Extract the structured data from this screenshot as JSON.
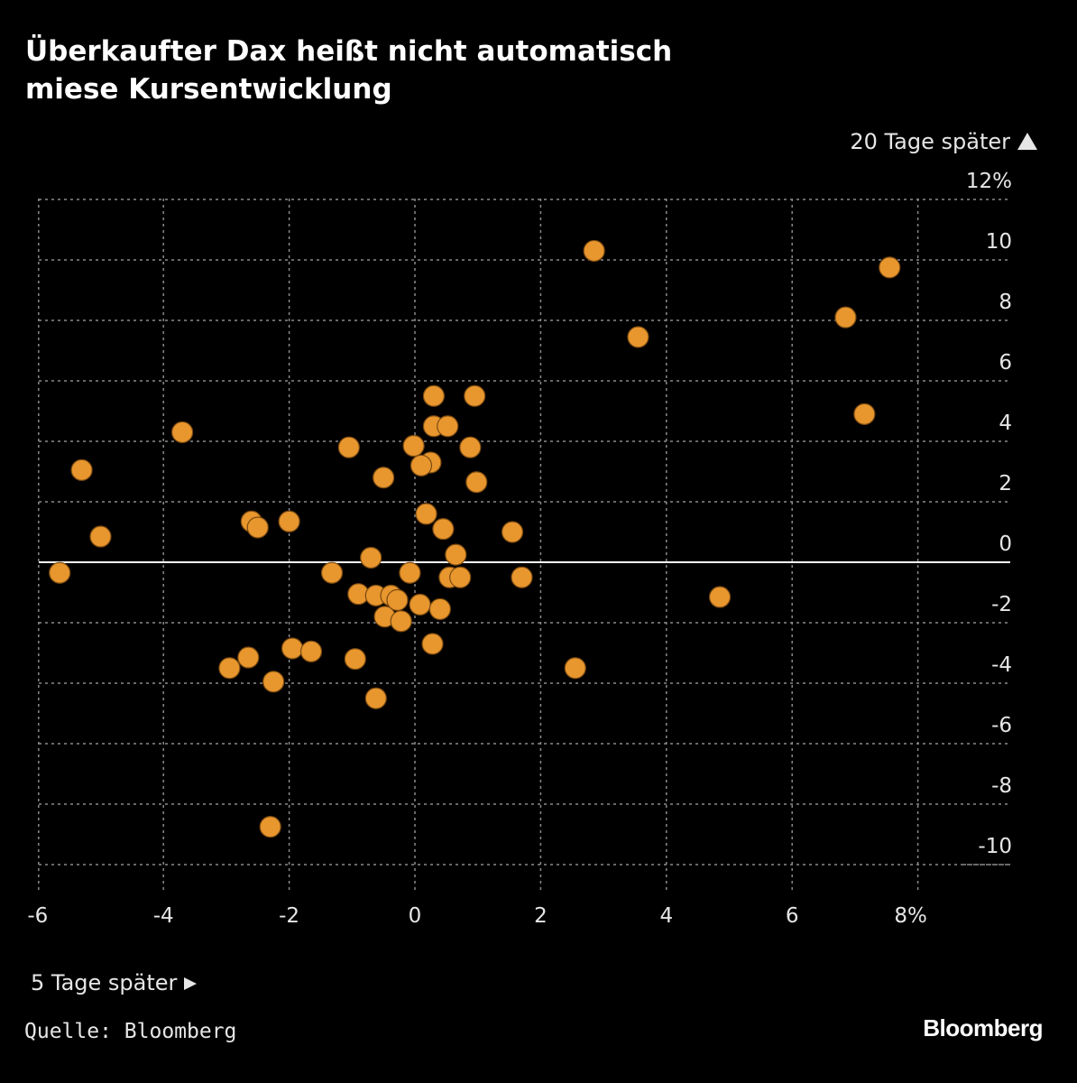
{
  "title_lines": [
    "Überkaufter Dax heißt nicht automatisch",
    "miese Kursentwicklung"
  ],
  "source": "Quelle: Bloomberg",
  "brand": "Bloomberg",
  "colors": {
    "point": "#E8962E",
    "point_stroke": "#7a4a10",
    "grid": "#8a8a8a",
    "zero_line": "#ffffff",
    "background": "#000000"
  },
  "chart_data": {
    "type": "scatter",
    "xlabel": "5 Tage später",
    "ylabel": "20 Tage später",
    "xlim": [
      -6,
      9
    ],
    "ylim": [
      -11,
      12
    ],
    "x_ticks": [
      -6,
      -4,
      -2,
      0,
      2,
      4,
      6,
      8
    ],
    "x_tick_labels": [
      "-6",
      "-4",
      "-2",
      "0",
      "2",
      "4",
      "6",
      "8%"
    ],
    "y_ticks": [
      12,
      10,
      8,
      6,
      4,
      2,
      0,
      -2,
      -4,
      -6,
      -8,
      -10
    ],
    "y_tick_labels": [
      "12%",
      "10",
      "8",
      "6",
      "4",
      "2",
      "0",
      "-2",
      "-4",
      "-6",
      "-8",
      "-10"
    ],
    "grid": true,
    "zero_line_y": 0,
    "points": [
      {
        "x": 2.85,
        "y": 10.3
      },
      {
        "x": 7.55,
        "y": 9.75
      },
      {
        "x": 6.85,
        "y": 8.1
      },
      {
        "x": 3.55,
        "y": 7.45
      },
      {
        "x": 7.15,
        "y": 4.9
      },
      {
        "x": 0.3,
        "y": 5.5
      },
      {
        "x": 0.95,
        "y": 5.5
      },
      {
        "x": 0.3,
        "y": 4.5
      },
      {
        "x": 0.52,
        "y": 4.5
      },
      {
        "x": -3.7,
        "y": 4.3
      },
      {
        "x": -1.05,
        "y": 3.8
      },
      {
        "x": -0.02,
        "y": 3.85
      },
      {
        "x": 0.88,
        "y": 3.8
      },
      {
        "x": 0.25,
        "y": 3.3
      },
      {
        "x": 0.1,
        "y": 3.2
      },
      {
        "x": -5.3,
        "y": 3.05
      },
      {
        "x": -0.5,
        "y": 2.8
      },
      {
        "x": 0.98,
        "y": 2.65
      },
      {
        "x": 0.18,
        "y": 1.6
      },
      {
        "x": -2.6,
        "y": 1.35
      },
      {
        "x": -2.5,
        "y": 1.15
      },
      {
        "x": -2.0,
        "y": 1.35
      },
      {
        "x": 0.45,
        "y": 1.1
      },
      {
        "x": 1.55,
        "y": 1.0
      },
      {
        "x": -5.0,
        "y": 0.85
      },
      {
        "x": -0.7,
        "y": 0.15
      },
      {
        "x": 0.65,
        "y": 0.25
      },
      {
        "x": -5.65,
        "y": -0.35
      },
      {
        "x": -1.32,
        "y": -0.35
      },
      {
        "x": -0.08,
        "y": -0.35
      },
      {
        "x": 0.55,
        "y": -0.5
      },
      {
        "x": 0.72,
        "y": -0.5
      },
      {
        "x": 1.7,
        "y": -0.5
      },
      {
        "x": -0.9,
        "y": -1.05
      },
      {
        "x": -0.62,
        "y": -1.1
      },
      {
        "x": -0.38,
        "y": -1.1
      },
      {
        "x": -0.28,
        "y": -1.25
      },
      {
        "x": 0.08,
        "y": -1.4
      },
      {
        "x": 0.4,
        "y": -1.55
      },
      {
        "x": -0.48,
        "y": -1.8
      },
      {
        "x": -0.22,
        "y": -1.95
      },
      {
        "x": 4.85,
        "y": -1.15
      },
      {
        "x": 0.28,
        "y": -2.7
      },
      {
        "x": -1.95,
        "y": -2.85
      },
      {
        "x": -1.65,
        "y": -2.95
      },
      {
        "x": -2.65,
        "y": -3.15
      },
      {
        "x": -0.95,
        "y": -3.2
      },
      {
        "x": -2.95,
        "y": -3.5
      },
      {
        "x": 2.55,
        "y": -3.5
      },
      {
        "x": -2.25,
        "y": -3.95
      },
      {
        "x": -0.62,
        "y": -4.5
      },
      {
        "x": -2.3,
        "y": -8.75
      }
    ]
  }
}
